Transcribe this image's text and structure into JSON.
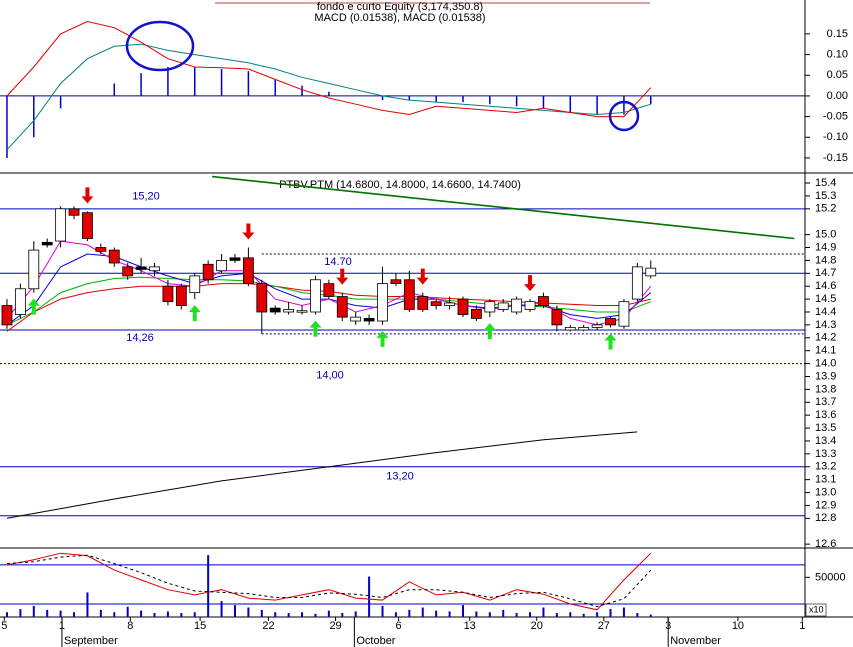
{
  "chart_data": [
    {
      "type": "macd",
      "title": "fondo e curto Equity (3,174,350.8)",
      "subtitle": "MACD (0.01538), MACD (0.01538)",
      "xlim": [
        -0.52,
        59.5
      ],
      "ylim": [
        -0.184,
        0.232
      ],
      "yticks": [
        0.15,
        {
          "value": 0.1,
          "label": "0.10"
        },
        0.05,
        {
          "value": 0,
          "label": "0.00"
        },
        -0.05,
        {
          "value": -0.1,
          "label": "-0.10"
        },
        -0.15
      ],
      "x": [
        0,
        2,
        4,
        6,
        8,
        10,
        12,
        14,
        16,
        18,
        20,
        22,
        24,
        26,
        28,
        30,
        32,
        34,
        36,
        38,
        40,
        42,
        44,
        46,
        48
      ],
      "series": [
        {
          "type": "bar",
          "color": "#0000c8",
          "values": [
            -0.15,
            -0.1,
            -0.03,
            0.0,
            0.03,
            0.055,
            0.07,
            0.07,
            0.065,
            0.06,
            0.04,
            0.025,
            0.01,
            0.0,
            -0.01,
            -0.01,
            -0.015,
            -0.015,
            -0.02,
            -0.025,
            -0.03,
            -0.04,
            -0.045,
            -0.045,
            -0.02
          ]
        },
        {
          "type": "line",
          "color": "#008080",
          "values": [
            -0.13,
            -0.06,
            0.03,
            0.09,
            0.12,
            0.125,
            0.11,
            0.1,
            0.09,
            0.08,
            0.065,
            0.045,
            0.03,
            0.015,
            0.0,
            -0.01,
            -0.015,
            -0.02,
            -0.025,
            -0.03,
            -0.035,
            -0.04,
            -0.045,
            -0.04,
            -0.02
          ]
        },
        {
          "type": "line",
          "color": "#e00000",
          "values": [
            0.0,
            0.07,
            0.15,
            0.18,
            0.165,
            0.13,
            0.09,
            0.07,
            0.068,
            0.065,
            0.04,
            0.015,
            -0.005,
            -0.02,
            -0.035,
            -0.045,
            -0.025,
            -0.03,
            -0.035,
            -0.04,
            -0.03,
            -0.04,
            -0.05,
            -0.05,
            0.02
          ]
        }
      ]
    },
    {
      "type": "candlestick",
      "title": "PTBV.PTM (14.6800, 14.8000, 14.6600, 14.7400)",
      "xlim": [
        -0.52,
        59.5
      ],
      "ylim": [
        12.57,
        15.47
      ],
      "yticks": [
        15.4,
        15.3,
        15.2,
        {
          "value": 15,
          "label": "15.0"
        },
        14.9,
        14.8,
        14.7,
        14.6,
        14.5,
        14.4,
        14.3,
        14.2,
        14.1,
        {
          "value": 14,
          "label": "14.0"
        },
        13.9,
        13.8,
        13.7,
        13.6,
        13.5,
        13.4,
        13.3,
        13.2,
        13.1,
        {
          "value": 13,
          "label": "13.0"
        },
        12.9,
        12.8,
        12.6
      ],
      "x": [
        0,
        1,
        2,
        3,
        4,
        5,
        6,
        7,
        8,
        9,
        10,
        11,
        12,
        13,
        14,
        15,
        16,
        17,
        18,
        19,
        20,
        21,
        22,
        23,
        24,
        25,
        26,
        27,
        28,
        29,
        30,
        31,
        32,
        33,
        34,
        35,
        36,
        37,
        38,
        39,
        40,
        41,
        42,
        43,
        44,
        45,
        46,
        47,
        48
      ],
      "open": [
        14.45,
        14.38,
        14.58,
        14.94,
        14.95,
        15.2,
        15.17,
        14.9,
        14.88,
        14.75,
        14.75,
        14.72,
        14.6,
        14.6,
        14.55,
        14.77,
        14.72,
        14.82,
        14.82,
        14.62,
        14.43,
        14.4,
        14.4,
        14.4,
        14.62,
        14.52,
        14.33,
        14.35,
        14.33,
        14.65,
        14.65,
        14.52,
        14.48,
        14.45,
        14.5,
        14.42,
        14.4,
        14.42,
        14.4,
        14.42,
        14.52,
        14.42,
        14.26,
        14.26,
        14.28,
        14.35,
        14.29,
        14.5,
        14.68
      ],
      "high": [
        14.5,
        14.62,
        14.95,
        14.97,
        15.22,
        15.22,
        15.18,
        14.93,
        14.9,
        14.78,
        14.82,
        14.78,
        14.65,
        14.62,
        14.7,
        14.8,
        14.85,
        14.85,
        14.9,
        14.65,
        14.45,
        14.48,
        14.45,
        14.68,
        14.65,
        14.55,
        14.4,
        14.38,
        14.75,
        14.7,
        14.72,
        14.55,
        14.5,
        14.52,
        14.52,
        14.45,
        14.5,
        14.5,
        14.52,
        14.5,
        14.55,
        14.45,
        14.3,
        14.3,
        14.32,
        14.36,
        14.5,
        14.78,
        14.8
      ],
      "low": [
        14.27,
        14.35,
        14.55,
        14.9,
        14.9,
        15.12,
        14.95,
        14.85,
        14.75,
        14.65,
        14.7,
        14.68,
        14.45,
        14.42,
        14.5,
        14.62,
        14.7,
        14.78,
        14.6,
        14.23,
        14.38,
        14.38,
        14.38,
        14.38,
        14.5,
        14.33,
        14.3,
        14.3,
        14.3,
        14.6,
        14.4,
        14.4,
        14.42,
        14.42,
        14.36,
        14.33,
        14.36,
        14.4,
        14.38,
        14.4,
        14.43,
        14.25,
        14.25,
        14.25,
        14.26,
        14.28,
        14.27,
        14.48,
        14.66
      ],
      "close": [
        14.3,
        14.58,
        14.88,
        14.92,
        15.2,
        15.15,
        14.97,
        14.87,
        14.78,
        14.68,
        14.73,
        14.75,
        14.48,
        14.45,
        14.68,
        14.65,
        14.8,
        14.8,
        14.62,
        14.4,
        14.4,
        14.42,
        14.41,
        14.65,
        14.52,
        14.36,
        14.36,
        14.33,
        14.62,
        14.62,
        14.42,
        14.42,
        14.45,
        14.47,
        14.38,
        14.35,
        14.48,
        14.47,
        14.5,
        14.48,
        14.45,
        14.3,
        14.28,
        14.28,
        14.3,
        14.3,
        14.48,
        14.75,
        14.74
      ],
      "series": [
        {
          "color": "#000000",
          "x": [
            0,
            8,
            16,
            24,
            32,
            40,
            47
          ],
          "values": [
            12.8,
            12.95,
            13.09,
            13.2,
            13.31,
            13.41,
            13.47
          ]
        },
        {
          "color": "#e00000",
          "x": [
            0,
            2,
            4,
            6,
            8,
            10,
            12,
            14,
            16,
            18,
            20,
            22,
            24,
            26,
            28,
            30,
            32,
            34,
            36,
            38,
            40,
            42,
            44,
            46,
            48
          ],
          "values": [
            14.25,
            14.4,
            14.5,
            14.55,
            14.58,
            14.6,
            14.6,
            14.6,
            14.62,
            14.62,
            14.6,
            14.57,
            14.56,
            14.53,
            14.52,
            14.52,
            14.51,
            14.5,
            14.49,
            14.48,
            14.47,
            14.46,
            14.45,
            14.45,
            14.5
          ]
        },
        {
          "color": "#00b000",
          "x": [
            0,
            2,
            4,
            6,
            8,
            10,
            12,
            14,
            16,
            18,
            20,
            22,
            24,
            26,
            28,
            30,
            32,
            34,
            36,
            38,
            40,
            42,
            44,
            46,
            48
          ],
          "values": [
            14.3,
            14.4,
            14.55,
            14.62,
            14.66,
            14.67,
            14.66,
            14.65,
            14.65,
            14.64,
            14.6,
            14.55,
            14.53,
            14.5,
            14.5,
            14.5,
            14.5,
            14.48,
            14.46,
            14.45,
            14.44,
            14.42,
            14.4,
            14.4,
            14.48
          ]
        },
        {
          "color": "#0000e0",
          "x": [
            0,
            2,
            4,
            6,
            8,
            10,
            12,
            14,
            16,
            18,
            20,
            22,
            24,
            26,
            28,
            30,
            32,
            34,
            36,
            38,
            40,
            42,
            44,
            46,
            48
          ],
          "values": [
            14.3,
            14.45,
            14.75,
            14.85,
            14.83,
            14.75,
            14.68,
            14.62,
            14.68,
            14.7,
            14.58,
            14.5,
            14.5,
            14.45,
            14.43,
            14.5,
            14.5,
            14.45,
            14.43,
            14.45,
            14.45,
            14.38,
            14.35,
            14.38,
            14.55
          ]
        },
        {
          "color": "#e000e0",
          "x": [
            0,
            2,
            4,
            6,
            8,
            10,
            12,
            14,
            16,
            18,
            20,
            22,
            24,
            26,
            28,
            30,
            32,
            34,
            36,
            38,
            40,
            42,
            44,
            46,
            48
          ],
          "values": [
            14.35,
            14.6,
            14.95,
            14.92,
            14.8,
            14.72,
            14.62,
            14.6,
            14.72,
            14.72,
            14.5,
            14.45,
            14.5,
            14.4,
            14.45,
            14.55,
            14.5,
            14.45,
            14.42,
            14.45,
            14.47,
            14.35,
            14.3,
            14.35,
            14.6
          ]
        }
      ],
      "trend": {
        "color": "#007000",
        "x": [
          15.3,
          58.7
        ],
        "values": [
          15.45,
          14.97
        ]
      },
      "hlines": [
        {
          "value": 15.2,
          "label": "15,20",
          "color": "#0000c0",
          "style": "solid"
        },
        {
          "value": 14.7,
          "label": "14.70",
          "color": "#0000c0",
          "style": "solid"
        },
        {
          "value": 14.26,
          "label": "14,26",
          "color": "#0000c0",
          "style": "solid"
        },
        {
          "value": 14.0,
          "label": "14,00",
          "color": "#000080",
          "style": "dashed"
        },
        {
          "value": 13.2,
          "label": "13,20",
          "color": "#0000c0",
          "style": "solid"
        },
        {
          "value": 12.82,
          "color": "#0000c0",
          "style": "solid"
        },
        {
          "value": 14.85,
          "color": "#000080",
          "style": "dashed",
          "x_start": 19
        },
        {
          "value": 14.23,
          "color": "#000080",
          "style": "dashed",
          "x_start": 19
        }
      ],
      "sell_signals": [
        6,
        18,
        25,
        31,
        39
      ],
      "buy_signals": [
        2,
        14,
        23,
        28,
        36,
        45
      ]
    },
    {
      "type": "volume",
      "xlim": [
        -0.52,
        59.5
      ],
      "ylim": [
        0,
        87000
      ],
      "yticks": [
        50000
      ],
      "y2lim": [
        0,
        106
      ],
      "y2_levels": [
        80,
        20
      ],
      "volume_multiplier": "x10",
      "x": [
        0,
        1,
        2,
        3,
        4,
        5,
        6,
        7,
        8,
        9,
        10,
        11,
        12,
        13,
        14,
        15,
        16,
        17,
        18,
        19,
        20,
        21,
        22,
        23,
        24,
        25,
        26,
        27,
        28,
        29,
        30,
        31,
        32,
        33,
        34,
        35,
        36,
        37,
        38,
        39,
        40,
        41,
        42,
        43,
        44,
        45,
        46,
        47,
        48
      ],
      "values": [
        6000,
        10000,
        14000,
        9000,
        8000,
        6000,
        31000,
        9000,
        6000,
        13000,
        8000,
        5000,
        7000,
        5000,
        6000,
        78000,
        20000,
        15000,
        12000,
        9000,
        6000,
        5000,
        6000,
        4000,
        8000,
        5000,
        7000,
        51000,
        14000,
        6000,
        9000,
        12000,
        8000,
        7000,
        15000,
        7000,
        6000,
        9000,
        5000,
        6000,
        12000,
        5000,
        6000,
        4000,
        6000,
        10000,
        12000,
        5000,
        3000
      ],
      "color": "#0000c8",
      "series": [
        {
          "axis": "y2",
          "color": "#e00000",
          "style": "solid",
          "x": [
            0,
            2,
            4,
            6,
            8,
            10,
            12,
            14,
            16,
            18,
            20,
            22,
            24,
            26,
            28,
            30,
            32,
            34,
            36,
            38,
            40,
            42,
            44,
            46,
            48
          ],
          "values": [
            80,
            88,
            98,
            94,
            72,
            57,
            42,
            34,
            42,
            29,
            26,
            34,
            42,
            29,
            26,
            54,
            34,
            38,
            26,
            42,
            35,
            20,
            11,
            57,
            98
          ]
        },
        {
          "axis": "y2",
          "color": "#000000",
          "style": "dashed",
          "x": [
            0,
            2,
            4,
            6,
            8,
            10,
            12,
            14,
            16,
            18,
            20,
            22,
            24,
            26,
            28,
            30,
            32,
            34,
            36,
            38,
            40,
            42,
            44,
            46,
            48
          ],
          "values": [
            82,
            85,
            92,
            95,
            82,
            68,
            52,
            40,
            38,
            36,
            30,
            30,
            37,
            35,
            30,
            42,
            42,
            38,
            30,
            36,
            38,
            28,
            16,
            28,
            72
          ]
        }
      ],
      "xticks": [
        {
          "value": -0.2,
          "label": "5"
        },
        {
          "value": 4.1,
          "label": "1"
        },
        {
          "value": 9.2,
          "label": "8"
        },
        {
          "value": 14.4,
          "label": "15"
        },
        {
          "value": 19.5,
          "label": "22"
        },
        {
          "value": 24.5,
          "label": "29"
        },
        {
          "value": 29.2,
          "label": "6"
        },
        {
          "value": 34.5,
          "label": "13"
        },
        {
          "value": 39.5,
          "label": "20"
        },
        {
          "value": 44.5,
          "label": "27"
        },
        {
          "value": 49.3,
          "label": "3"
        },
        {
          "value": 54.5,
          "label": "10"
        },
        {
          "value": 59.3,
          "label": "1"
        }
      ],
      "months": [
        {
          "value": 4.1,
          "label": "September"
        },
        {
          "value": 25.9,
          "label": "October"
        },
        {
          "value": 49.3,
          "label": "November"
        }
      ]
    }
  ]
}
